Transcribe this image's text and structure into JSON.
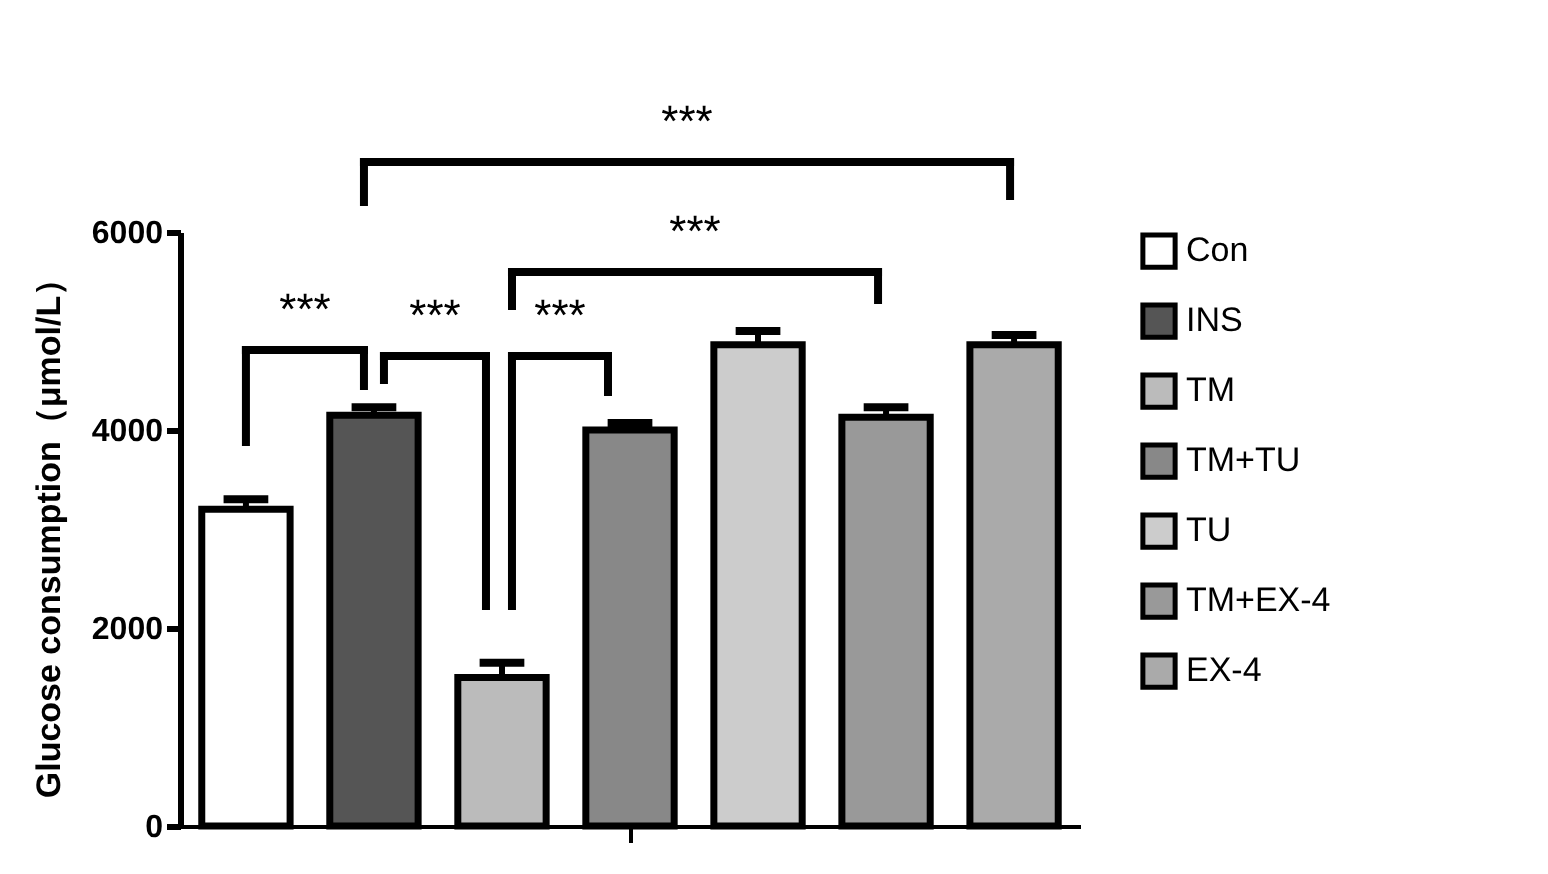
{
  "chart_data": {
    "type": "bar",
    "ylabel": "Glucose consumption（μmol/L）",
    "categories": [
      null
    ],
    "series": [
      {
        "name": "Con",
        "color": "#ffffff",
        "values": [
          3200
        ],
        "errors": [
          [
            3200,
            3300
          ]
        ]
      },
      {
        "name": "INS",
        "color": "#555555",
        "values": [
          4150
        ],
        "errors": [
          [
            4150,
            4230
          ]
        ]
      },
      {
        "name": "TM",
        "color": "#bbbbbb",
        "values": [
          1500
        ],
        "errors": [
          [
            1500,
            1650
          ]
        ]
      },
      {
        "name": "TM+TU",
        "color": "#888888",
        "values": [
          4000
        ],
        "errors": [
          [
            4000,
            4070
          ]
        ]
      },
      {
        "name": "TU",
        "color": "#cccccc",
        "values": [
          4860
        ],
        "errors": [
          [
            4860,
            5000
          ]
        ]
      },
      {
        "name": "TM+EX-4",
        "color": "#999999",
        "values": [
          4130
        ],
        "errors": [
          [
            4130,
            4230
          ]
        ]
      },
      {
        "name": "EX-4",
        "color": "#aaaaaa",
        "values": [
          4860
        ],
        "errors": [
          [
            4860,
            4960
          ]
        ]
      }
    ],
    "ylim": [
      0,
      6000
    ],
    "yticks": [
      0,
      2000,
      4000,
      6000
    ],
    "grid": false,
    "legend": "right",
    "tick_labels": "y",
    "annotations": [
      "***",
      "***",
      "***",
      "***",
      "***"
    ]
  }
}
